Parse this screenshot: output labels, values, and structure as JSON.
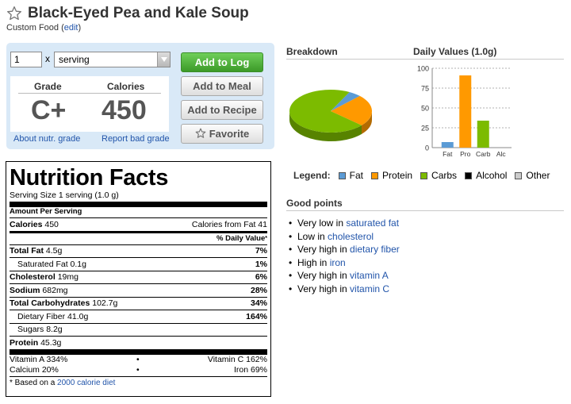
{
  "header": {
    "title": "Black-Eyed Pea and Kale Soup",
    "subtitle_prefix": "Custom Food (",
    "edit_link": "edit",
    "subtitle_suffix": ")"
  },
  "controls": {
    "quantity": "1",
    "times": "x",
    "unit": "serving",
    "grade_label": "Grade",
    "calories_label": "Calories",
    "grade": "C+",
    "calories": "450",
    "about_link": "About nutr. grade",
    "report_link": "Report bad grade",
    "buttons": {
      "add_to_log": "Add to Log",
      "add_to_meal": "Add to Meal",
      "add_to_recipe": "Add to Recipe",
      "favorite": "Favorite"
    }
  },
  "nutrition": {
    "title": "Nutrition Facts",
    "serving_size": "Serving Size 1 serving (1.0 g)",
    "amount_per_serving": "Amount Per Serving",
    "calories_label": "Calories",
    "calories_value": "450",
    "calories_from_fat": "Calories from Fat 41",
    "dv_header": "% Daily Value",
    "dv_star": "*",
    "rows": {
      "total_fat": {
        "label": "Total Fat",
        "amount": "4.5g",
        "dv": "7%"
      },
      "saturated_fat": {
        "label": "Saturated Fat",
        "amount": "0.1g",
        "dv": "1%"
      },
      "cholesterol": {
        "label": "Cholesterol",
        "amount": "19mg",
        "dv": "6%"
      },
      "sodium": {
        "label": "Sodium",
        "amount": "682mg",
        "dv": "28%"
      },
      "total_carbs": {
        "label": "Total Carbohydrates",
        "amount": "102.7g",
        "dv": "34%"
      },
      "fiber": {
        "label": "Dietary Fiber",
        "amount": "41.0g",
        "dv": "164%"
      },
      "sugars": {
        "label": "Sugars",
        "amount": "8.2g"
      },
      "protein": {
        "label": "Protein",
        "amount": "45.3g"
      }
    },
    "vitamin_a": "Vitamin A 334%",
    "vitamin_c": "Vitamin C 162%",
    "calcium": "Calcium 20%",
    "iron": "Iron 69%",
    "bullet": "•",
    "footnote_prefix": "* Based on a ",
    "footnote_link": "2000 calorie diet"
  },
  "breakdown": {
    "label": "Breakdown",
    "slices": [
      {
        "name": "Fat",
        "color": "#5b9bd5",
        "fraction": 0.05
      },
      {
        "name": "Protein",
        "color": "#ff9900",
        "fraction": 0.24
      },
      {
        "name": "Carbs",
        "color": "#7cbb00",
        "fraction": 0.71
      }
    ]
  },
  "chart_data": {
    "type": "bar",
    "title": "Daily Values (1.0g)",
    "categories": [
      "Fat",
      "Pro",
      "Carb",
      "Alc"
    ],
    "values": [
      7,
      91,
      34,
      0
    ],
    "colors": [
      "#5b9bd5",
      "#ff9900",
      "#7cbb00",
      "#000000"
    ],
    "yticks": [
      "100",
      "75",
      "50",
      "25",
      "0"
    ],
    "ylim": [
      0,
      100
    ],
    "grid": true
  },
  "legend": {
    "label": "Legend:",
    "items": [
      {
        "name": "Fat",
        "color": "#5b9bd5"
      },
      {
        "name": "Protein",
        "color": "#ff9900"
      },
      {
        "name": "Carbs",
        "color": "#7cbb00"
      },
      {
        "name": "Alcohol",
        "color": "#000000"
      },
      {
        "name": "Other",
        "color": "#cccccc"
      }
    ]
  },
  "good_points": {
    "label": "Good points",
    "items": [
      {
        "prefix": "Very low in ",
        "link": "saturated fat"
      },
      {
        "prefix": "Low in ",
        "link": "cholesterol"
      },
      {
        "prefix": "Very high in ",
        "link": "dietary fiber"
      },
      {
        "prefix": "High in ",
        "link": "iron"
      },
      {
        "prefix": "Very high in ",
        "link": "vitamin A"
      },
      {
        "prefix": "Very high in ",
        "link": "vitamin C"
      }
    ]
  }
}
